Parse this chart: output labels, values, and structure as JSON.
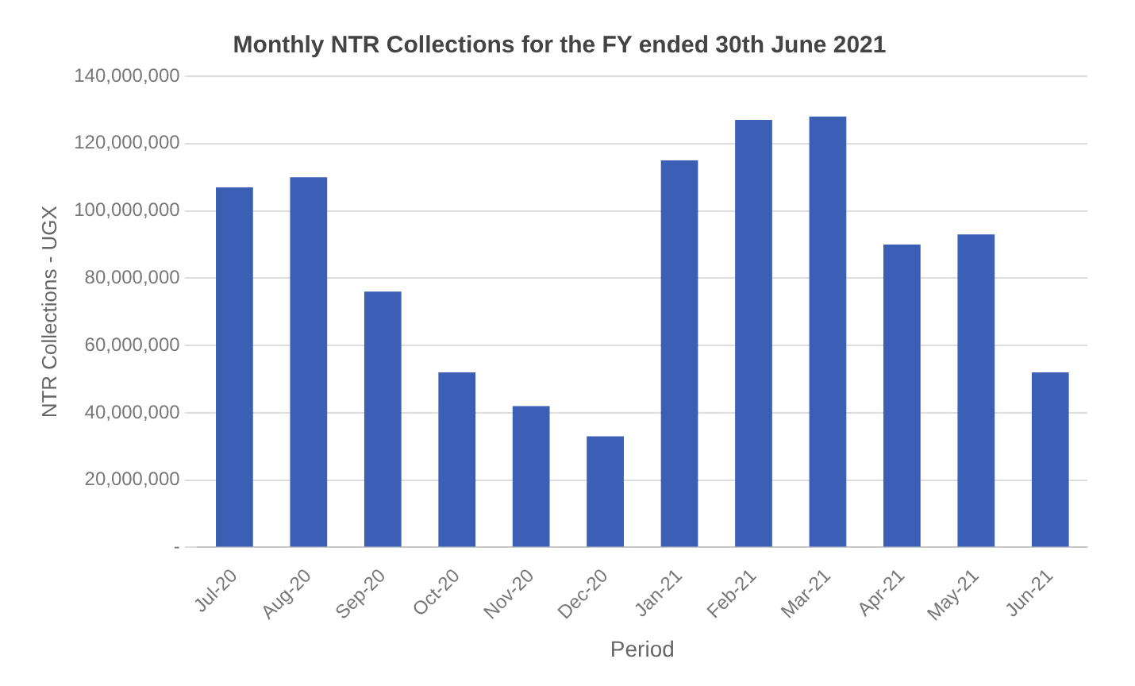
{
  "chart_data": {
    "type": "bar",
    "title": "Monthly NTR Collections for the FY ended 30th June 2021",
    "xlabel": "Period",
    "ylabel": "NTR Collections - UGX",
    "categories": [
      "Jul-20",
      "Aug-20",
      "Sep-20",
      "Oct-20",
      "Nov-20",
      "Dec-20",
      "Jan-21",
      "Feb-21",
      "Mar-21",
      "Apr-21",
      "May-21",
      "Jun-21"
    ],
    "values": [
      107000000,
      110000000,
      76000000,
      52000000,
      42000000,
      33000000,
      115000000,
      127000000,
      128000000,
      90000000,
      93000000,
      52000000
    ],
    "color": "#3a5fb4",
    "ylim": [
      0,
      140000000
    ],
    "yticks": [
      {
        "value": 0,
        "label": "-"
      },
      {
        "value": 20000000,
        "label": "20,000,000"
      },
      {
        "value": 40000000,
        "label": "40,000,000"
      },
      {
        "value": 60000000,
        "label": "60,000,000"
      },
      {
        "value": 80000000,
        "label": "80,000,000"
      },
      {
        "value": 100000000,
        "label": "100,000,000"
      },
      {
        "value": 120000000,
        "label": "120,000,000"
      },
      {
        "value": 140000000,
        "label": "140,000,000"
      }
    ],
    "grid": "y",
    "legend": false
  }
}
